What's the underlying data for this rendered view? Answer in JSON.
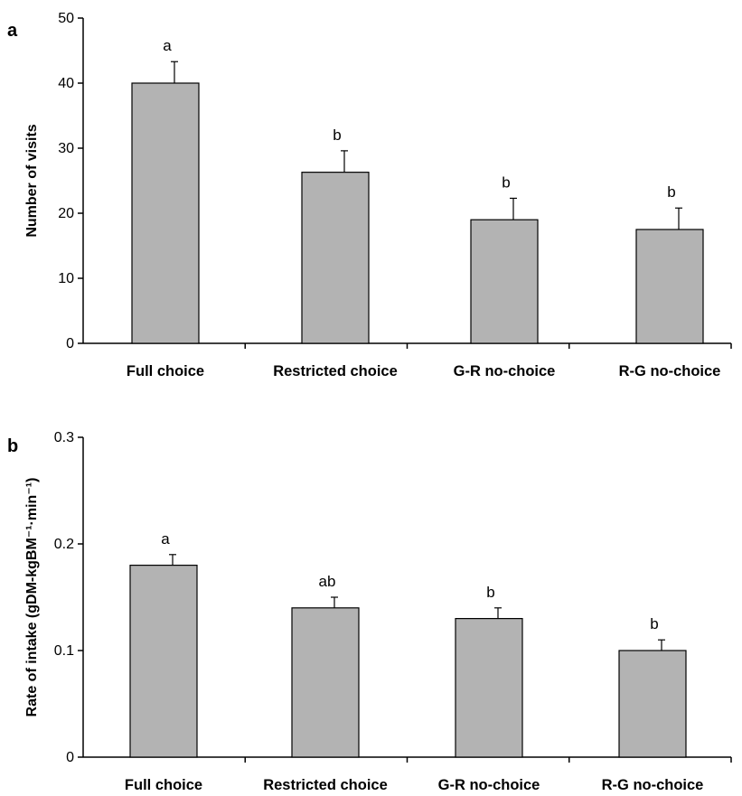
{
  "chart_data": [
    {
      "panel": "a",
      "type": "bar",
      "categories": [
        "Full choice",
        "Restricted choice",
        "G-R no-choice",
        "R-G no-choice"
      ],
      "values": [
        40,
        26.3,
        19,
        17.5
      ],
      "errors": [
        3.3,
        3.3,
        3.3,
        3.3
      ],
      "significance": [
        "a",
        "b",
        "b",
        "b"
      ],
      "ylabel": "Number of visits",
      "ylim": [
        0,
        50
      ],
      "yticks": [
        "0",
        "10",
        "20",
        "30",
        "40",
        "50"
      ],
      "bar_color": "#b3b3b3",
      "grid": false
    },
    {
      "panel": "b",
      "type": "bar",
      "categories": [
        "Full choice",
        "Restricted choice",
        "G-R no-choice",
        "R-G no-choice"
      ],
      "values": [
        0.18,
        0.14,
        0.13,
        0.1
      ],
      "errors": [
        0.01,
        0.01,
        0.01,
        0.01
      ],
      "significance": [
        "a",
        "ab",
        "b",
        "b"
      ],
      "ylabel": "Rate of intake (gDM-kgBM⁻¹·min⁻¹)",
      "ylim": [
        0,
        0.3
      ],
      "yticks": [
        "0",
        "0.1",
        "0.2",
        "0.3"
      ],
      "bar_color": "#b3b3b3",
      "grid": false
    }
  ]
}
